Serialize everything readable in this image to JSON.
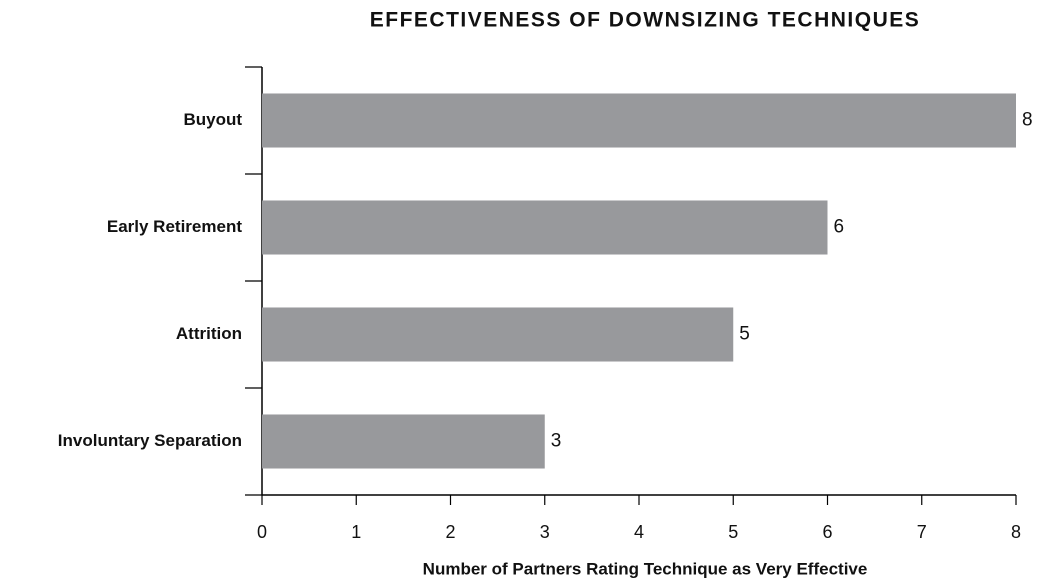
{
  "chart_data": {
    "type": "bar",
    "orientation": "horizontal",
    "title": "EFFECTIVENESS OF DOWNSIZING TECHNIQUES",
    "x_label": "Number of Partners Rating Technique as Very Effective",
    "categories": [
      "Buyout",
      "Early Retirement",
      "Attrition",
      "Involuntary Separation"
    ],
    "values": [
      8,
      6,
      5,
      3
    ],
    "color": "#98999c",
    "xlim": [
      0,
      8
    ],
    "xticks": [
      0,
      1,
      2,
      3,
      4,
      5,
      6,
      7,
      8
    ],
    "grid": false
  }
}
